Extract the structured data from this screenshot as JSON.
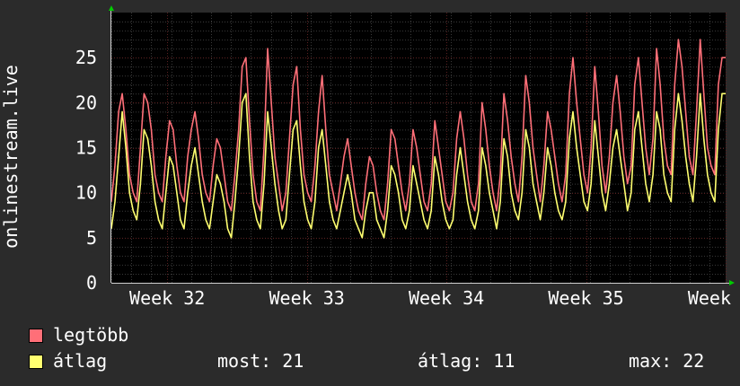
{
  "chart_data": {
    "type": "line",
    "ylabel": "onlinestream.live",
    "ylim": [
      0,
      30
    ],
    "y_ticks": [
      0,
      5,
      10,
      15,
      20,
      25
    ],
    "x_range_weeks": [
      31.6,
      36.0
    ],
    "x_ticks": [
      {
        "label": "Week 32",
        "week": 32
      },
      {
        "label": "Week 33",
        "week": 33
      },
      {
        "label": "Week 34",
        "week": 34
      },
      {
        "label": "Week 35",
        "week": 35
      },
      {
        "label": "Week 36",
        "week": 36
      }
    ],
    "series": [
      {
        "name": "legtöbb",
        "color": "#ff6f78",
        "values": [
          9,
          13,
          19,
          21,
          17,
          12,
          10,
          9,
          15,
          21,
          20,
          17,
          12,
          10,
          9,
          14,
          18,
          17,
          13,
          10,
          9,
          14,
          17,
          19,
          16,
          12,
          10,
          9,
          13,
          16,
          15,
          12,
          9,
          8,
          12,
          17,
          24,
          25,
          18,
          12,
          9,
          8,
          15,
          26,
          20,
          14,
          11,
          8,
          10,
          16,
          22,
          24,
          17,
          12,
          10,
          9,
          13,
          19,
          23,
          17,
          12,
          10,
          8,
          11,
          14,
          16,
          13,
          10,
          8,
          7,
          11,
          14,
          13,
          10,
          8,
          7,
          11,
          17,
          16,
          13,
          10,
          8,
          11,
          17,
          15,
          12,
          9,
          8,
          11,
          18,
          15,
          12,
          9,
          8,
          10,
          16,
          19,
          16,
          12,
          9,
          8,
          11,
          20,
          17,
          13,
          10,
          8,
          12,
          21,
          18,
          14,
          11,
          9,
          14,
          23,
          20,
          15,
          12,
          9,
          13,
          19,
          17,
          14,
          11,
          9,
          12,
          21,
          25,
          20,
          16,
          12,
          10,
          15,
          24,
          19,
          13,
          10,
          14,
          20,
          23,
          19,
          14,
          11,
          13,
          22,
          25,
          20,
          15,
          12,
          16,
          26,
          22,
          16,
          13,
          12,
          22,
          27,
          24,
          19,
          14,
          12,
          19,
          27,
          21,
          15,
          13,
          12,
          22,
          25,
          25
        ]
      },
      {
        "name": "átlag",
        "color": "#ffff70",
        "values": [
          6,
          9,
          14,
          19,
          15,
          10,
          8,
          7,
          11,
          17,
          16,
          13,
          9,
          7,
          6,
          10,
          14,
          13,
          10,
          7,
          6,
          10,
          13,
          15,
          12,
          9,
          7,
          6,
          9,
          12,
          11,
          9,
          6,
          5,
          9,
          14,
          20,
          21,
          14,
          9,
          7,
          6,
          11,
          19,
          15,
          11,
          8,
          6,
          7,
          12,
          17,
          18,
          13,
          9,
          7,
          6,
          9,
          15,
          17,
          13,
          9,
          7,
          6,
          8,
          10,
          12,
          10,
          7,
          6,
          5,
          8,
          10,
          10,
          7,
          6,
          5,
          8,
          13,
          12,
          10,
          7,
          6,
          8,
          13,
          11,
          9,
          7,
          6,
          8,
          14,
          12,
          9,
          7,
          6,
          7,
          12,
          15,
          12,
          9,
          7,
          6,
          8,
          15,
          13,
          10,
          8,
          6,
          9,
          16,
          14,
          10,
          8,
          7,
          10,
          17,
          15,
          11,
          9,
          7,
          10,
          15,
          13,
          10,
          8,
          7,
          9,
          16,
          19,
          15,
          12,
          9,
          8,
          11,
          18,
          14,
          10,
          8,
          11,
          15,
          17,
          14,
          11,
          8,
          10,
          17,
          19,
          15,
          11,
          9,
          12,
          19,
          17,
          12,
          10,
          9,
          17,
          21,
          18,
          14,
          11,
          9,
          14,
          21,
          16,
          12,
          10,
          9,
          17,
          21,
          21
        ]
      }
    ],
    "colors": {
      "background": "#2b2b2b",
      "plot_bg": "#000000",
      "grid": "#3a3a3a",
      "major_grid": "#5a2020",
      "axis_arrow": "#00cc00"
    }
  },
  "legend": {
    "items": [
      {
        "label": "legtöbb",
        "color": "#ff6f78"
      },
      {
        "label": "átlag",
        "color": "#ffff70"
      }
    ],
    "stats": {
      "now": "most: 21",
      "avg": "átlag: 11",
      "max": "max: 22"
    }
  }
}
